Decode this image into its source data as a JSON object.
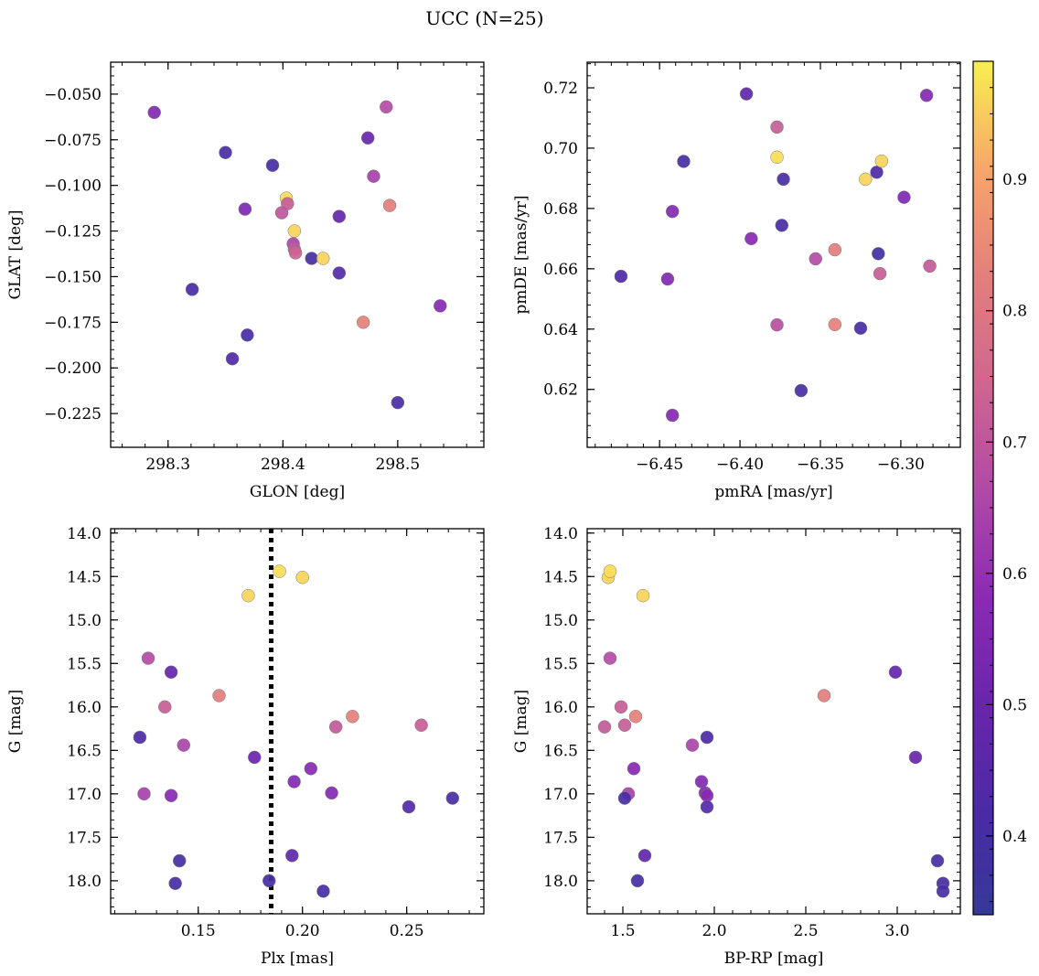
{
  "figure": {
    "title": "UCC (N=25)"
  },
  "colorbar": {
    "range": [
      0.34,
      0.99
    ],
    "ticks": [
      0.4,
      0.5,
      0.6,
      0.7,
      0.8,
      0.9
    ],
    "colormap": "plasma"
  },
  "chart_data": [
    {
      "type": "scatter",
      "xlabel": "GLON [deg]",
      "ylabel": "GLAT [deg]",
      "xlim": [
        298.25,
        298.575
      ],
      "ylim": [
        -0.2435,
        -0.0325
      ],
      "xticks": [
        298.3,
        298.4,
        298.5
      ],
      "yticks": [
        -0.05,
        -0.075,
        -0.1,
        -0.125,
        -0.15,
        -0.175,
        -0.2,
        -0.225
      ],
      "ytick_labels": [
        "−0.050",
        "−0.075",
        "−0.100",
        "−0.125",
        "−0.150",
        "−0.175",
        "−0.200",
        "−0.225"
      ],
      "xtick_labels": [
        "298.3",
        "298.4",
        "298.5"
      ],
      "points": [
        {
          "x": 298.288,
          "y": -0.06,
          "c": 0.56
        },
        {
          "x": 298.35,
          "y": -0.082,
          "c": 0.4
        },
        {
          "x": 298.391,
          "y": -0.089,
          "c": 0.4
        },
        {
          "x": 298.367,
          "y": -0.113,
          "c": 0.55
        },
        {
          "x": 298.321,
          "y": -0.157,
          "c": 0.42
        },
        {
          "x": 298.369,
          "y": -0.182,
          "c": 0.41
        },
        {
          "x": 298.356,
          "y": -0.195,
          "c": 0.43
        },
        {
          "x": 298.403,
          "y": -0.107,
          "c": 0.97
        },
        {
          "x": 298.404,
          "y": -0.11,
          "c": 0.72
        },
        {
          "x": 298.399,
          "y": -0.115,
          "c": 0.7
        },
        {
          "x": 298.41,
          "y": -0.125,
          "c": 0.96
        },
        {
          "x": 298.409,
          "y": -0.132,
          "c": 0.65
        },
        {
          "x": 298.41,
          "y": -0.135,
          "c": 0.71
        },
        {
          "x": 298.411,
          "y": -0.137,
          "c": 0.74
        },
        {
          "x": 298.425,
          "y": -0.14,
          "c": 0.4
        },
        {
          "x": 298.435,
          "y": -0.14,
          "c": 0.96
        },
        {
          "x": 298.449,
          "y": -0.117,
          "c": 0.49
        },
        {
          "x": 298.449,
          "y": -0.148,
          "c": 0.44
        },
        {
          "x": 298.474,
          "y": -0.074,
          "c": 0.5
        },
        {
          "x": 298.479,
          "y": -0.095,
          "c": 0.64
        },
        {
          "x": 298.49,
          "y": -0.057,
          "c": 0.67
        },
        {
          "x": 298.493,
          "y": -0.111,
          "c": 0.82
        },
        {
          "x": 298.47,
          "y": -0.175,
          "c": 0.83
        },
        {
          "x": 298.5,
          "y": -0.219,
          "c": 0.41
        },
        {
          "x": 298.537,
          "y": -0.166,
          "c": 0.57
        }
      ]
    },
    {
      "type": "scatter",
      "xlabel": "pmRA [mas/yr]",
      "ylabel": "pmDE [mas/yr]",
      "xlim": [
        -6.495,
        -6.263
      ],
      "ylim": [
        0.6008,
        0.7285
      ],
      "xticks": [
        -6.45,
        -6.4,
        -6.35,
        -6.3
      ],
      "xtick_labels": [
        "−6.45",
        "−6.40",
        "−6.35",
        "−6.30"
      ],
      "yticks": [
        0.62,
        0.64,
        0.66,
        0.68,
        0.7,
        0.72
      ],
      "ytick_labels": [
        "0.62",
        "0.64",
        "0.66",
        "0.68",
        "0.70",
        "0.72"
      ],
      "points": [
        {
          "x": -6.474,
          "y": 0.6575,
          "c": 0.42
        },
        {
          "x": -6.445,
          "y": 0.6566,
          "c": 0.56
        },
        {
          "x": -6.442,
          "y": 0.679,
          "c": 0.56
        },
        {
          "x": -6.442,
          "y": 0.6114,
          "c": 0.57
        },
        {
          "x": -6.435,
          "y": 0.6956,
          "c": 0.4
        },
        {
          "x": -6.396,
          "y": 0.718,
          "c": 0.47
        },
        {
          "x": -6.393,
          "y": 0.67,
          "c": 0.57
        },
        {
          "x": -6.377,
          "y": 0.707,
          "c": 0.72
        },
        {
          "x": -6.377,
          "y": 0.697,
          "c": 0.97
        },
        {
          "x": -6.377,
          "y": 0.6414,
          "c": 0.68
        },
        {
          "x": -6.373,
          "y": 0.6897,
          "c": 0.4
        },
        {
          "x": -6.374,
          "y": 0.6744,
          "c": 0.41
        },
        {
          "x": -6.362,
          "y": 0.6196,
          "c": 0.4
        },
        {
          "x": -6.353,
          "y": 0.6633,
          "c": 0.67
        },
        {
          "x": -6.341,
          "y": 0.6663,
          "c": 0.82
        },
        {
          "x": -6.341,
          "y": 0.6415,
          "c": 0.83
        },
        {
          "x": -6.325,
          "y": 0.6403,
          "c": 0.41
        },
        {
          "x": -6.322,
          "y": 0.6897,
          "c": 0.96
        },
        {
          "x": -6.315,
          "y": 0.692,
          "c": 0.42
        },
        {
          "x": -6.312,
          "y": 0.6957,
          "c": 0.96
        },
        {
          "x": -6.314,
          "y": 0.665,
          "c": 0.38
        },
        {
          "x": -6.313,
          "y": 0.6584,
          "c": 0.72
        },
        {
          "x": -6.298,
          "y": 0.6837,
          "c": 0.55
        },
        {
          "x": -6.284,
          "y": 0.7175,
          "c": 0.56
        },
        {
          "x": -6.282,
          "y": 0.6609,
          "c": 0.71
        }
      ]
    },
    {
      "type": "scatter",
      "xlabel": "Plx [mas]",
      "ylabel": "G [mag]",
      "xlim": [
        0.108,
        0.287
      ],
      "ylim": [
        18.38,
        13.95
      ],
      "xticks": [
        0.15,
        0.2,
        0.25
      ],
      "xtick_labels": [
        "0.15",
        "0.20",
        "0.25"
      ],
      "yticks": [
        14.0,
        14.5,
        15.0,
        15.5,
        16.0,
        16.5,
        17.0,
        17.5,
        18.0
      ],
      "ytick_labels": [
        "14.0",
        "14.5",
        "15.0",
        "15.5",
        "16.0",
        "16.5",
        "17.0",
        "17.5",
        "18.0"
      ],
      "vline": {
        "x": 0.185,
        "style": "dotted"
      },
      "points": [
        {
          "x": 0.174,
          "y": 14.72,
          "c": 0.96
        },
        {
          "x": 0.189,
          "y": 14.44,
          "c": 0.97
        },
        {
          "x": 0.2,
          "y": 14.51,
          "c": 0.96
        },
        {
          "x": 0.126,
          "y": 15.44,
          "c": 0.67
        },
        {
          "x": 0.137,
          "y": 15.6,
          "c": 0.49
        },
        {
          "x": 0.134,
          "y": 16.0,
          "c": 0.72
        },
        {
          "x": 0.16,
          "y": 15.87,
          "c": 0.82
        },
        {
          "x": 0.122,
          "y": 16.35,
          "c": 0.42
        },
        {
          "x": 0.143,
          "y": 16.44,
          "c": 0.65
        },
        {
          "x": 0.124,
          "y": 17.0,
          "c": 0.64
        },
        {
          "x": 0.137,
          "y": 17.02,
          "c": 0.57
        },
        {
          "x": 0.177,
          "y": 16.58,
          "c": 0.5
        },
        {
          "x": 0.196,
          "y": 16.86,
          "c": 0.56
        },
        {
          "x": 0.204,
          "y": 16.71,
          "c": 0.57
        },
        {
          "x": 0.214,
          "y": 16.99,
          "c": 0.56
        },
        {
          "x": 0.216,
          "y": 16.23,
          "c": 0.71
        },
        {
          "x": 0.224,
          "y": 16.11,
          "c": 0.83
        },
        {
          "x": 0.257,
          "y": 16.21,
          "c": 0.72
        },
        {
          "x": 0.251,
          "y": 17.15,
          "c": 0.44
        },
        {
          "x": 0.272,
          "y": 17.05,
          "c": 0.41
        },
        {
          "x": 0.141,
          "y": 17.77,
          "c": 0.4
        },
        {
          "x": 0.139,
          "y": 18.03,
          "c": 0.4
        },
        {
          "x": 0.195,
          "y": 17.71,
          "c": 0.47
        },
        {
          "x": 0.184,
          "y": 18.0,
          "c": 0.4
        },
        {
          "x": 0.21,
          "y": 18.12,
          "c": 0.41
        }
      ]
    },
    {
      "type": "scatter",
      "xlabel": "BP-RP [mag]",
      "ylabel": "G [mag]",
      "xlim": [
        1.305,
        3.345
      ],
      "ylim": [
        18.38,
        13.95
      ],
      "xticks": [
        1.5,
        2.0,
        2.5,
        3.0
      ],
      "xtick_labels": [
        "1.5",
        "2.0",
        "2.5",
        "3.0"
      ],
      "yticks": [
        14.0,
        14.5,
        15.0,
        15.5,
        16.0,
        16.5,
        17.0,
        17.5,
        18.0
      ],
      "ytick_labels": [
        "14.0",
        "14.5",
        "15.0",
        "15.5",
        "16.0",
        "16.5",
        "17.0",
        "17.5",
        "18.0"
      ],
      "points": [
        {
          "x": 1.42,
          "y": 14.51,
          "c": 0.96
        },
        {
          "x": 1.43,
          "y": 14.44,
          "c": 0.97
        },
        {
          "x": 1.61,
          "y": 14.72,
          "c": 0.96
        },
        {
          "x": 1.43,
          "y": 15.44,
          "c": 0.67
        },
        {
          "x": 1.49,
          "y": 16.0,
          "c": 0.72
        },
        {
          "x": 1.51,
          "y": 16.21,
          "c": 0.72
        },
        {
          "x": 1.4,
          "y": 16.23,
          "c": 0.71
        },
        {
          "x": 1.57,
          "y": 16.11,
          "c": 0.83
        },
        {
          "x": 2.6,
          "y": 15.87,
          "c": 0.82
        },
        {
          "x": 2.99,
          "y": 15.6,
          "c": 0.49
        },
        {
          "x": 1.88,
          "y": 16.44,
          "c": 0.65
        },
        {
          "x": 1.96,
          "y": 16.35,
          "c": 0.42
        },
        {
          "x": 3.1,
          "y": 16.58,
          "c": 0.5
        },
        {
          "x": 1.56,
          "y": 16.71,
          "c": 0.57
        },
        {
          "x": 1.53,
          "y": 17.0,
          "c": 0.64
        },
        {
          "x": 1.51,
          "y": 17.05,
          "c": 0.41
        },
        {
          "x": 1.93,
          "y": 16.86,
          "c": 0.56
        },
        {
          "x": 1.95,
          "y": 16.99,
          "c": 0.56
        },
        {
          "x": 1.96,
          "y": 17.02,
          "c": 0.57
        },
        {
          "x": 1.96,
          "y": 17.15,
          "c": 0.44
        },
        {
          "x": 1.62,
          "y": 17.71,
          "c": 0.47
        },
        {
          "x": 1.58,
          "y": 18.0,
          "c": 0.4
        },
        {
          "x": 3.22,
          "y": 17.77,
          "c": 0.4
        },
        {
          "x": 3.25,
          "y": 18.03,
          "c": 0.4
        },
        {
          "x": 3.25,
          "y": 18.12,
          "c": 0.41
        }
      ]
    }
  ]
}
